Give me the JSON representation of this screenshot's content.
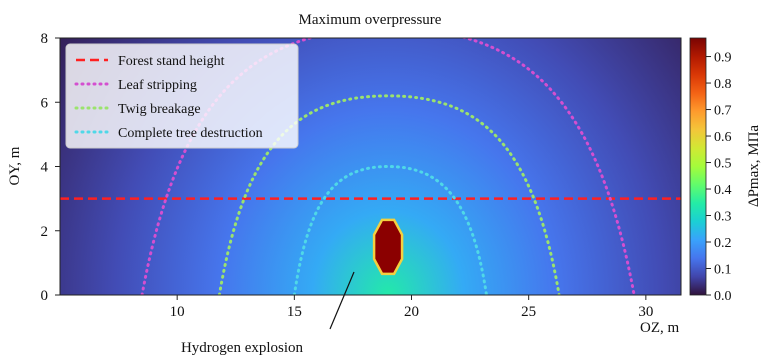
{
  "chart_data": {
    "type": "heatmap",
    "title": "Maximum overpressure",
    "xlabel": "OZ, m",
    "ylabel": "OY, m",
    "xlim": [
      5,
      31.5
    ],
    "ylim": [
      0,
      8
    ],
    "x_ticks": [
      10,
      15,
      20,
      25,
      30
    ],
    "y_ticks": [
      0,
      2,
      4,
      6,
      8
    ],
    "colorbar": {
      "label": "ΔPmax, MПа",
      "range": [
        0.0,
        0.97
      ],
      "ticks": [
        "0.0",
        "0.1",
        "0.2",
        "0.3",
        "0.4",
        "0.5",
        "0.6",
        "0.7",
        "0.8",
        "0.9"
      ],
      "colormap": [
        "#30123b",
        "#4145ab",
        "#4675ed",
        "#39a2fc",
        "#1bcfd4",
        "#24eca6",
        "#61fc6c",
        "#a4fc3b",
        "#d1e834",
        "#f3c63a",
        "#fe9b2d",
        "#f36315",
        "#d93806",
        "#b11901",
        "#7a0403"
      ]
    },
    "source": {
      "x": 19.0,
      "y": 1.5,
      "label": "Hydrogen explosion",
      "color": "#8b0000"
    },
    "series": [
      {
        "name": "Forest stand height",
        "style": "dashed",
        "color": "#ff2020",
        "y": 3.0
      },
      {
        "name": "Leaf stripping",
        "style": "dotted",
        "color": "#d44fd0",
        "x_left": 8.5,
        "x_right": 29.5,
        "peak_y": 8.3
      },
      {
        "name": "Twig breakage",
        "style": "dotted",
        "color": "#9be36d",
        "x_left": 11.8,
        "x_right": 26.3,
        "peak_y": 6.2
      },
      {
        "name": "Complete tree destruction",
        "style": "dotted",
        "color": "#4fd8e8",
        "x_left": 15.0,
        "x_right": 23.2,
        "peak_y": 4.0
      }
    ],
    "legend_position": "top-left",
    "grid": false
  }
}
